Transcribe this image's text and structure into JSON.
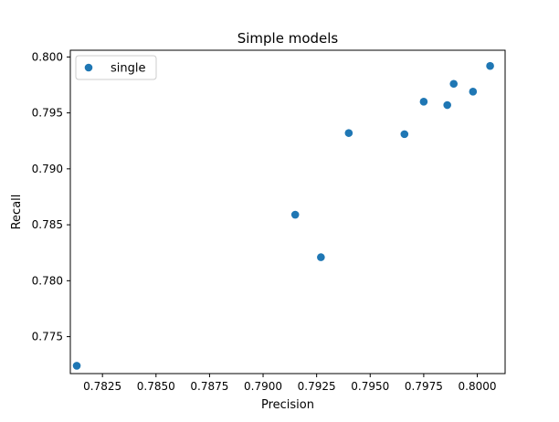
{
  "chart_data": {
    "type": "scatter",
    "title": "Simple models",
    "xlabel": "Precision",
    "ylabel": "Recall",
    "xlim": [
      0.781,
      0.8013
    ],
    "ylim": [
      0.7717,
      0.8006
    ],
    "x_ticks": [
      0.7825,
      0.785,
      0.7875,
      0.79,
      0.7925,
      0.795,
      0.7975,
      0.8
    ],
    "x_tick_labels": [
      "0.7825",
      "0.7850",
      "0.7875",
      "0.7900",
      "0.7925",
      "0.7950",
      "0.7975",
      "0.8000"
    ],
    "y_ticks": [
      0.775,
      0.78,
      0.785,
      0.79,
      0.795,
      0.8
    ],
    "y_tick_labels": [
      "0.775",
      "0.780",
      "0.785",
      "0.790",
      "0.795",
      "0.800"
    ],
    "grid": false,
    "legend": {
      "placement": "upper left"
    },
    "series": [
      {
        "name": "single",
        "color": "#1f77b4",
        "marker": "circle",
        "points": [
          {
            "x": 0.7813,
            "y": 0.7724
          },
          {
            "x": 0.7915,
            "y": 0.7859
          },
          {
            "x": 0.7927,
            "y": 0.7821
          },
          {
            "x": 0.794,
            "y": 0.7932
          },
          {
            "x": 0.7966,
            "y": 0.7931
          },
          {
            "x": 0.7975,
            "y": 0.796
          },
          {
            "x": 0.7986,
            "y": 0.7957
          },
          {
            "x": 0.7989,
            "y": 0.7976
          },
          {
            "x": 0.7998,
            "y": 0.7969
          },
          {
            "x": 0.8006,
            "y": 0.7992
          }
        ]
      }
    ]
  }
}
